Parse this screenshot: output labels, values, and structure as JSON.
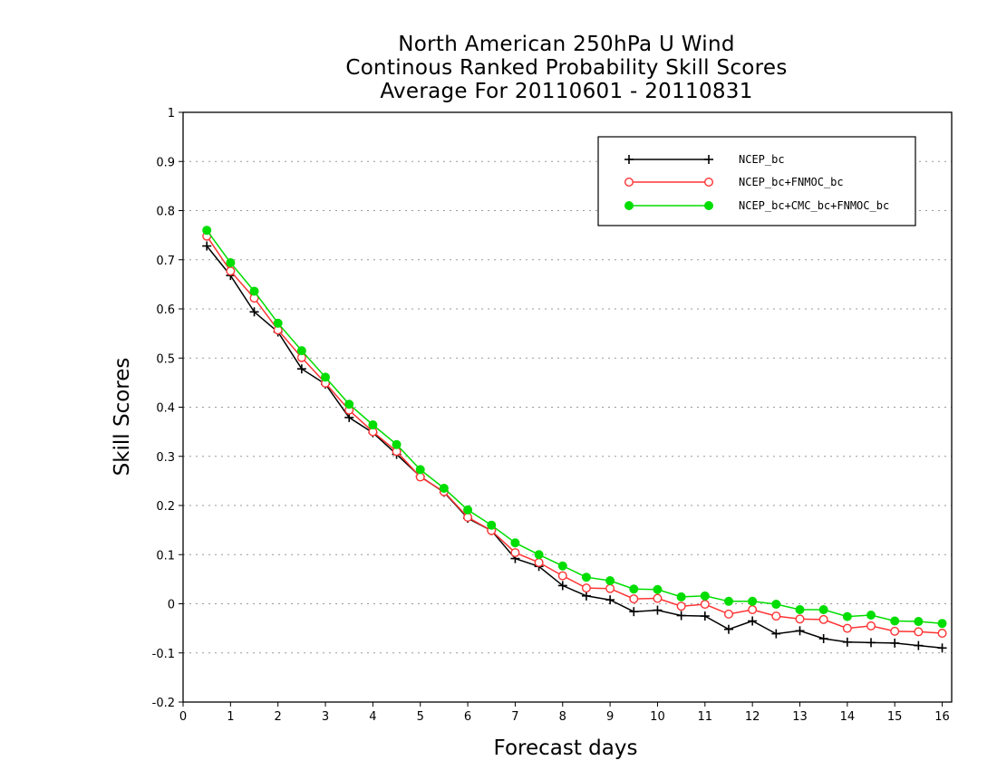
{
  "chart_data": {
    "type": "line",
    "title_lines": [
      "North American 250hPa U Wind",
      "Continous Ranked Probability Skill Scores",
      "Average For 20110601 - 20110831"
    ],
    "xlabel": "Forecast days",
    "ylabel": "Skill Scores",
    "xlim": [
      0,
      16.2
    ],
    "ylim": [
      -0.2,
      1
    ],
    "x_ticks": [
      0,
      1,
      2,
      3,
      4,
      5,
      6,
      7,
      8,
      9,
      10,
      11,
      12,
      13,
      14,
      15,
      16
    ],
    "y_ticks": [
      -0.2,
      -0.1,
      0,
      0.1,
      0.2,
      0.3,
      0.4,
      0.5,
      0.6,
      0.7,
      0.8,
      0.9,
      1
    ],
    "y_tick_labels": [
      "-0.2",
      "-0.1",
      "0",
      "0.1",
      "0.2",
      "0.3",
      "0.4",
      "0.5",
      "0.6",
      "0.7",
      "0.8",
      "0.9",
      "1"
    ],
    "grid": "horizontal dotted",
    "legend_position": "top-right",
    "x": [
      0.5,
      1,
      1.5,
      2,
      2.5,
      3,
      3.5,
      4,
      4.5,
      5,
      5.5,
      6,
      6.5,
      7,
      7.5,
      8,
      8.5,
      9,
      9.5,
      10,
      10.5,
      11,
      11.5,
      12,
      12.5,
      13,
      13.5,
      14,
      14.5,
      15,
      15.5,
      16
    ],
    "series": [
      {
        "name": "NCEP_bc",
        "color": "#000000",
        "marker": "plus",
        "values": [
          0.728,
          0.668,
          0.594,
          0.553,
          0.478,
          0.447,
          0.379,
          0.348,
          0.304,
          0.259,
          0.227,
          0.174,
          0.149,
          0.092,
          0.076,
          0.037,
          0.016,
          0.008,
          -0.016,
          -0.013,
          -0.024,
          -0.025,
          -0.052,
          -0.035,
          -0.061,
          -0.055,
          -0.071,
          -0.078,
          -0.079,
          -0.08,
          -0.085,
          -0.09
        ]
      },
      {
        "name": "NCEP_bc+FNMOC_bc",
        "color": "#ff3333",
        "marker": "open-circle",
        "values": [
          0.748,
          0.677,
          0.622,
          0.557,
          0.501,
          0.449,
          0.394,
          0.35,
          0.31,
          0.258,
          0.228,
          0.176,
          0.149,
          0.104,
          0.084,
          0.057,
          0.032,
          0.031,
          0.01,
          0.011,
          -0.005,
          -0.001,
          -0.021,
          -0.012,
          -0.025,
          -0.031,
          -0.032,
          -0.05,
          -0.045,
          -0.056,
          -0.057,
          -0.06
        ]
      },
      {
        "name": "NCEP_bc+CMC_bc+FNMOC_bc",
        "color": "#00dd00",
        "marker": "filled-circle",
        "values": [
          0.76,
          0.694,
          0.636,
          0.571,
          0.515,
          0.461,
          0.406,
          0.364,
          0.324,
          0.273,
          0.235,
          0.191,
          0.16,
          0.124,
          0.1,
          0.077,
          0.054,
          0.047,
          0.03,
          0.029,
          0.014,
          0.016,
          0.005,
          0.005,
          -0.001,
          -0.012,
          -0.012,
          -0.026,
          -0.023,
          -0.035,
          -0.036,
          -0.04
        ]
      }
    ]
  }
}
